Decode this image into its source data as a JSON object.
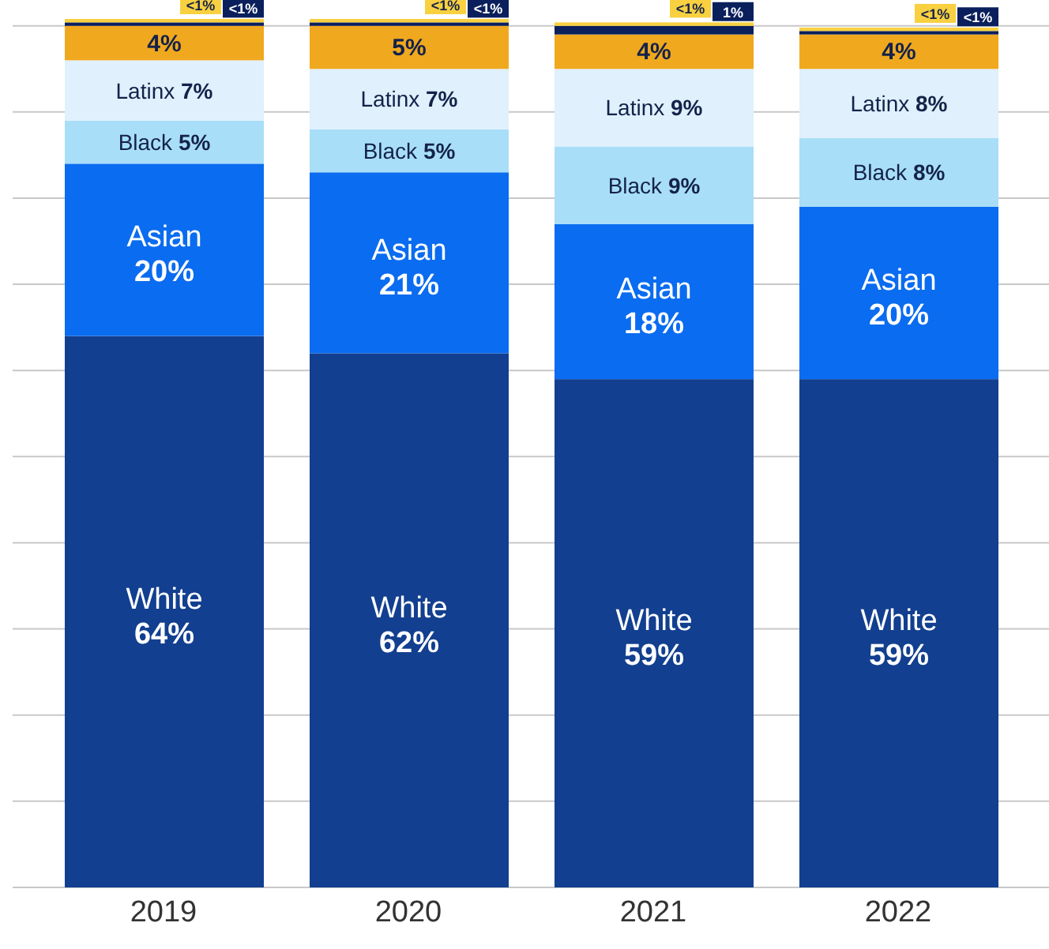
{
  "chart_data": {
    "type": "bar",
    "stacked": true,
    "categories": [
      "2019",
      "2020",
      "2021",
      "2022"
    ],
    "series": [
      {
        "name": "White",
        "color": "#123f8f",
        "values": [
          64,
          62,
          59,
          59
        ],
        "value_labels": [
          "64%",
          "62%",
          "59%",
          "59%"
        ]
      },
      {
        "name": "Asian",
        "color": "#0a6cf0",
        "values": [
          20,
          21,
          18,
          20
        ],
        "value_labels": [
          "20%",
          "21%",
          "18%",
          "20%"
        ]
      },
      {
        "name": "Black",
        "color": "#a8def8",
        "values": [
          5,
          5,
          9,
          8
        ],
        "value_labels": [
          "5%",
          "5%",
          "9%",
          "8%"
        ]
      },
      {
        "name": "Latinx",
        "color": "#e0f0fc",
        "values": [
          7,
          7,
          9,
          8
        ],
        "value_labels": [
          "7%",
          "7%",
          "9%",
          "8%"
        ]
      },
      {
        "color": "#f0a81e",
        "values": [
          4,
          5,
          4,
          4
        ],
        "value_labels": [
          "4%",
          "5%",
          "4%",
          "4%"
        ]
      },
      {
        "color": "#0a1f5c",
        "values": [
          0.4,
          0.4,
          1,
          0.4
        ],
        "value_labels": [
          "<1%",
          "<1%",
          "1%",
          "<1%"
        ]
      },
      {
        "color": "#f8d040",
        "values": [
          0.4,
          0.4,
          0.4,
          0.4
        ],
        "value_labels": [
          "<1%",
          "<1%",
          "<1%",
          "<1%"
        ]
      }
    ],
    "ylim": [
      0,
      103
    ],
    "yticks": [
      {
        "value": 0,
        "label": null
      },
      {
        "value": 10,
        "label": null
      },
      {
        "value": 20,
        "label": null
      },
      {
        "value": 30,
        "label": null
      },
      {
        "value": 40,
        "label": null
      },
      {
        "value": 50,
        "label": null
      },
      {
        "value": 60,
        "label": null
      },
      {
        "value": 70,
        "label": null
      },
      {
        "value": 80,
        "label": null
      },
      {
        "value": 90,
        "label": null
      },
      {
        "value": 100,
        "label": null
      }
    ],
    "grid": "y",
    "legend": false,
    "tick_labels": "x"
  }
}
